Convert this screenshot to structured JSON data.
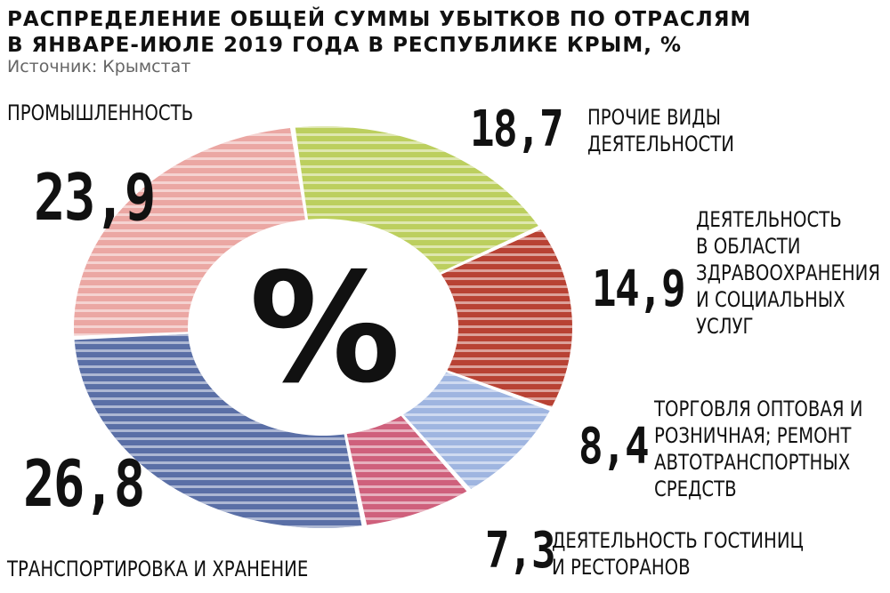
{
  "title_lines": [
    "РАСПРЕДЕЛЕНИЕ ОБЩЕЙ СУММЫ УБЫТКОВ ПО ОТРАСЛЯМ",
    "В ЯНВАРЕ-ИЮЛЕ 2019 ГОДА В РЕСПУБЛИКЕ КРЫМ, %"
  ],
  "source": "Источник: Крымстат",
  "center_symbol": "%",
  "chart_data": {
    "type": "pie",
    "donut": true,
    "title": "РАСПРЕДЕЛЕНИЕ ОБЩЕЙ СУММЫ УБЫТКОВ ПО ОТРАСЛЯМ В ЯНВАРЕ-ИЮЛЕ 2019 ГОДА В РЕСПУБЛИКЕ КРЫМ, %",
    "unit": "%",
    "slices": [
      {
        "label_lines": [
          "ПРОЧИЕ ВИДЫ",
          "ДЕЯТЕЛЬНОСТИ"
        ],
        "value": 18.7,
        "value_text": "18,7",
        "color": "#bccf5e"
      },
      {
        "label_lines": [
          "ДЕЯТЕЛЬНОСТЬ",
          "В ОБЛАСТИ",
          "ЗДРАВООХРАНЕНИЯ",
          "И СОЦИАЛЬНЫХ",
          "УСЛУГ"
        ],
        "value": 14.9,
        "value_text": "14,9",
        "color": "#b84234"
      },
      {
        "label_lines": [
          "ТОРГОВЛЯ ОПТОВАЯ И",
          "РОЗНИЧНАЯ; РЕМОНТ",
          "АВТОТРАНСПОРТНЫХ",
          "СРЕДСТВ"
        ],
        "value": 8.4,
        "value_text": "8,4",
        "color": "#9fb5e0"
      },
      {
        "label_lines": [
          "ДЕЯТЕЛЬНОСТЬ ГОСТИНИЦ",
          "И РЕСТОРАНОВ"
        ],
        "value": 7.3,
        "value_text": "7,3",
        "color": "#cf607c"
      },
      {
        "label_lines": [
          "ТРАНСПОРТИРОВКА И ХРАНЕНИЕ"
        ],
        "value": 26.8,
        "value_text": "26,8",
        "color": "#5a6fa6"
      },
      {
        "label_lines": [
          "ПРОМЫШЛЕННОСТЬ"
        ],
        "value": 23.9,
        "value_text": "23,9",
        "color": "#eba7a3"
      }
    ]
  }
}
